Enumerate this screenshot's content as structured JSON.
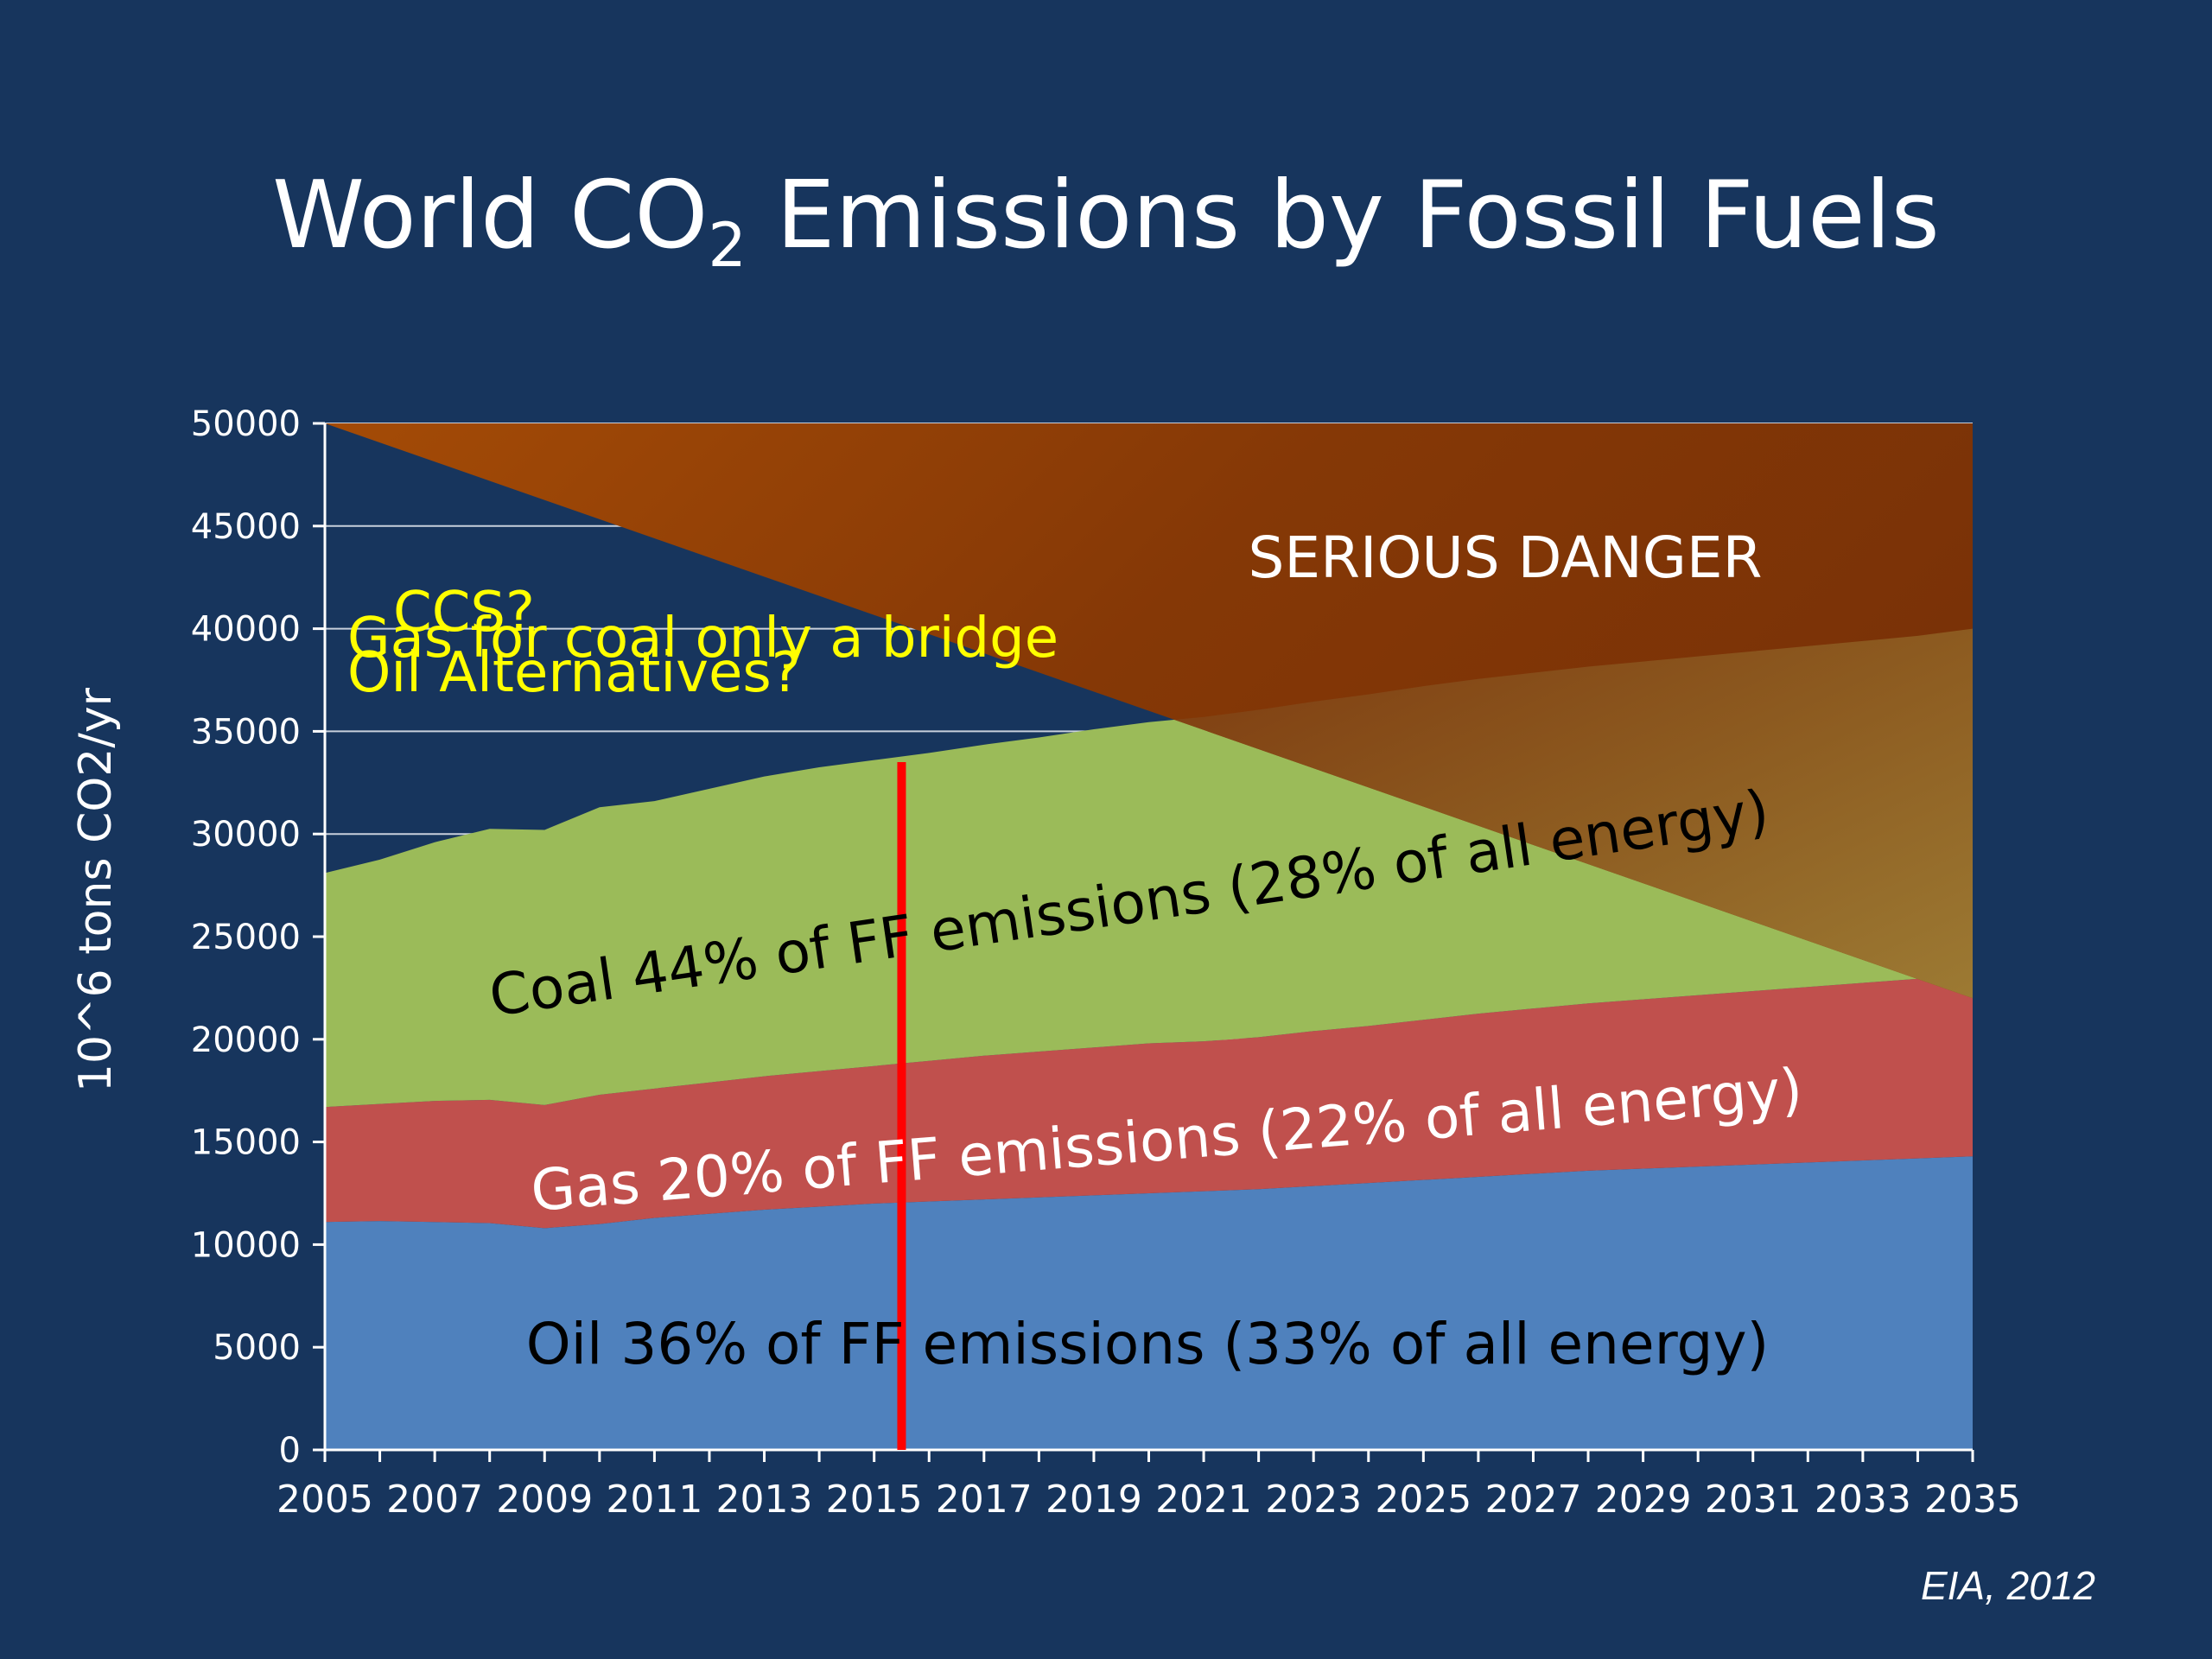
{
  "title": {
    "main": "World CO",
    "subscript": "2",
    "rest": " Emissions by Fossil Fuels"
  },
  "source": "EIA, 2012",
  "colors": {
    "background": "#17355d",
    "oil": "#4f81bd",
    "gas": "#c0504d",
    "coal": "#9bbb59",
    "danger_light": "#a24a08",
    "danger_dark": "#7a3208",
    "danger_overlap": "#9c7a30",
    "question_text": "#ffff00",
    "marker_line": "#ff0000"
  },
  "chart_data": {
    "type": "area",
    "stacked": true,
    "title": "World CO2 Emissions by Fossil Fuels",
    "xlabel": "",
    "ylabel": "10^6 tons CO2/yr",
    "xlim": [
      2005,
      2035
    ],
    "ylim": [
      0,
      50000
    ],
    "yticks": [
      "0",
      "5000",
      "10000",
      "15000",
      "20000",
      "25000",
      "30000",
      "35000",
      "40000",
      "45000",
      "50000"
    ],
    "xticks": [
      "2005",
      "2007",
      "2009",
      "2011",
      "2013",
      "2015",
      "2017",
      "2019",
      "2021",
      "2023",
      "2025",
      "2027",
      "2029",
      "2031",
      "2033",
      "2035"
    ],
    "grid": true,
    "x": [
      2005,
      2006,
      2007,
      2008,
      2009,
      2010,
      2011,
      2012,
      2013,
      2014,
      2015,
      2016,
      2017,
      2018,
      2019,
      2020,
      2021,
      2022,
      2023,
      2024,
      2025,
      2026,
      2027,
      2028,
      2029,
      2030,
      2031,
      2032,
      2033,
      2034,
      2035
    ],
    "series": [
      {
        "name": "Oil",
        "values": [
          11100,
          11150,
          11100,
          11050,
          10800,
          11000,
          11300,
          11500,
          11700,
          11850,
          12000,
          12100,
          12200,
          12300,
          12400,
          12500,
          12600,
          12700,
          12850,
          13000,
          13150,
          13300,
          13450,
          13600,
          13700,
          13800,
          13900,
          14000,
          14100,
          14200,
          14300
        ]
      },
      {
        "name": "Gas",
        "values": [
          5600,
          5700,
          5900,
          6000,
          6000,
          6300,
          6300,
          6400,
          6500,
          6600,
          6700,
          6850,
          7000,
          7100,
          7200,
          7300,
          7300,
          7400,
          7550,
          7650,
          7800,
          7950,
          8050,
          8150,
          8250,
          8350,
          8450,
          8550,
          8650,
          8750,
          8900
        ]
      },
      {
        "name": "Coal",
        "values": [
          11400,
          11900,
          12600,
          13200,
          13400,
          14000,
          14000,
          14300,
          14600,
          14800,
          14900,
          15000,
          15150,
          15300,
          15500,
          15650,
          15800,
          15950,
          16050,
          16150,
          16250,
          16300,
          16350,
          16400,
          16450,
          16500,
          16550,
          16600,
          16650,
          16700,
          16800
        ]
      }
    ],
    "danger_zone": {
      "label": "SERIOUS DANGER",
      "threshold_start": [
        2005,
        50000
      ],
      "threshold_end": [
        2035,
        22000
      ]
    },
    "marker": {
      "x": 2015.5,
      "y_top": 33500
    },
    "annotations": {
      "oil": "Oil 36% of FF emissions (33% of all energy)",
      "gas": "Gas 20% of FF emissions (22% of all energy)",
      "coal": "Coal 44% of FF emissions (28% of all energy)",
      "danger": "SERIOUS DANGER",
      "q1": "Gas for coal only a bridge",
      "q2": "CCS?",
      "q3": "Oil Alternatives?"
    }
  }
}
